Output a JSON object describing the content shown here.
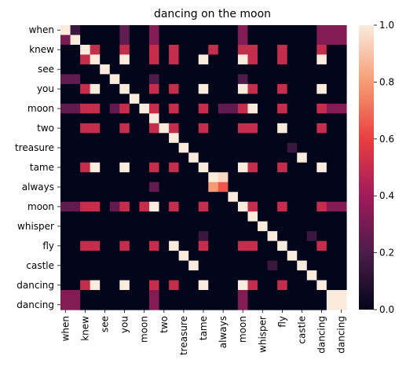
{
  "chart_data": {
    "type": "heatmap",
    "title": "dancing on the moon",
    "tokens": [
      "when",
      "",
      "knew",
      "",
      "see",
      "",
      "you",
      "",
      "moon",
      "",
      "two",
      "",
      "treasure",
      "",
      "tame",
      "",
      "always",
      "",
      "moon",
      "",
      "whisper",
      "",
      "fly",
      "",
      "castle",
      "",
      "dancing",
      "",
      "dancing"
    ],
    "row_labels_shown": [
      "when",
      "knew",
      "see",
      "you",
      "moon",
      "two",
      "treasure",
      "tame",
      "always",
      "moon",
      "whisper",
      "fly",
      "castle",
      "dancing",
      "dancing"
    ],
    "col_labels_shown": [
      "when",
      "knew",
      "see",
      "you",
      "moon",
      "two",
      "treasure",
      "tame",
      "always",
      "moon",
      "whisper",
      "fly",
      "castle",
      "dancing",
      "dancing"
    ],
    "matrix": [
      [
        1,
        0.15,
        0,
        0,
        0,
        0,
        0.25,
        0,
        0,
        0.33,
        0,
        0,
        0,
        0,
        0,
        0,
        0,
        0,
        0.33,
        0,
        0,
        0,
        0,
        0,
        0,
        0,
        0.33,
        0.33,
        0.33
      ],
      [
        0.3,
        1,
        0,
        0,
        0,
        0,
        0.25,
        0,
        0,
        0.33,
        0,
        0,
        0,
        0,
        0,
        0,
        0,
        0,
        0.33,
        0,
        0,
        0,
        0,
        0,
        0,
        0,
        0.33,
        0.33,
        0.33
      ],
      [
        0,
        0,
        1,
        0.5,
        0,
        0,
        0.5,
        0,
        0,
        0.5,
        0,
        0.5,
        0,
        0,
        0,
        0.5,
        0,
        0,
        0.5,
        0.5,
        0,
        0,
        0.5,
        0,
        0,
        0,
        0.5,
        0,
        0
      ],
      [
        0,
        0,
        0.5,
        1,
        0,
        0,
        1,
        0,
        0,
        0.5,
        0,
        0.5,
        0,
        0,
        1,
        0,
        0,
        0,
        1,
        0.5,
        0,
        0,
        0.5,
        0,
        0,
        0,
        1,
        0,
        0
      ],
      [
        0,
        0,
        0,
        0,
        1,
        0,
        0,
        0,
        0,
        0,
        0,
        0,
        0,
        0,
        0,
        0,
        0,
        0,
        0,
        0,
        0,
        0,
        0,
        0,
        0,
        0,
        0,
        0,
        0
      ],
      [
        0.25,
        0.25,
        0,
        0,
        0,
        1,
        0,
        0,
        0,
        0.2,
        0,
        0,
        0,
        0,
        0,
        0,
        0,
        0,
        0.2,
        0,
        0,
        0,
        0,
        0,
        0,
        0,
        0,
        0,
        0
      ],
      [
        0,
        0,
        0.5,
        1,
        0,
        0,
        1,
        0,
        0,
        0.5,
        0,
        0.5,
        0,
        0,
        1,
        0,
        0,
        0,
        1,
        0.5,
        0,
        0,
        0.5,
        0,
        0,
        0,
        1,
        0,
        0
      ],
      [
        0,
        0,
        0,
        0,
        0,
        0,
        0,
        1,
        0,
        0,
        0,
        0,
        0,
        0,
        0,
        0,
        0,
        0,
        0,
        0,
        0,
        0,
        0,
        0,
        0,
        0,
        0,
        0,
        0
      ],
      [
        0.25,
        0.25,
        0.5,
        0.5,
        0,
        0.25,
        0.5,
        0,
        1,
        0.5,
        0,
        0.5,
        0,
        0,
        0.5,
        0,
        0.25,
        0.25,
        0.5,
        1,
        0,
        0,
        0.5,
        0,
        0,
        0,
        0.5,
        0.33,
        0.33
      ],
      [
        0,
        0,
        0,
        0,
        0,
        0,
        0,
        0,
        0,
        1,
        0,
        0,
        0,
        0,
        0,
        0,
        0,
        0,
        0,
        0,
        0,
        0,
        0,
        0,
        0,
        0,
        0,
        0,
        0
      ],
      [
        0,
        0,
        0.5,
        0.5,
        0,
        0,
        0.5,
        0,
        0,
        0.5,
        1,
        0.5,
        0,
        0,
        0.5,
        0,
        0,
        0,
        0.5,
        0.5,
        0,
        0,
        1,
        0,
        0,
        0,
        0.5,
        0,
        0
      ],
      [
        0,
        0,
        0,
        0,
        0,
        0,
        0,
        0,
        0,
        0,
        0,
        1,
        0,
        0,
        0,
        0,
        0,
        0,
        0,
        0,
        0,
        0,
        0,
        0,
        0,
        0,
        0,
        0,
        0
      ],
      [
        0,
        0,
        0,
        0,
        0,
        0,
        0,
        0,
        0,
        0,
        0,
        0,
        1,
        0,
        0,
        0,
        0,
        0,
        0,
        0,
        0,
        0,
        0,
        0.15,
        0,
        0,
        0,
        0,
        0
      ],
      [
        0,
        0,
        0,
        0,
        0,
        0,
        0,
        0,
        0,
        0,
        0,
        0,
        0,
        1,
        0,
        0,
        0,
        0,
        0,
        0,
        0,
        0,
        0,
        0,
        1,
        0,
        0,
        0,
        0
      ],
      [
        0,
        0,
        0.5,
        1,
        0,
        0,
        1,
        0,
        0,
        0.5,
        0,
        0.5,
        0,
        0,
        1,
        0,
        0,
        0,
        1,
        0.5,
        0,
        0,
        0.5,
        0,
        0,
        0,
        1,
        0,
        0
      ],
      [
        0,
        0,
        0,
        0,
        0,
        0,
        0,
        0,
        0,
        0,
        0,
        0,
        0,
        0,
        0,
        1,
        0.95,
        0,
        0,
        0,
        0,
        0,
        0,
        0,
        0,
        0,
        0,
        0,
        0
      ],
      [
        0,
        0,
        0,
        0,
        0,
        0,
        0,
        0,
        0,
        0.25,
        0,
        0,
        0,
        0,
        0,
        0.8,
        0.65,
        0,
        0,
        0,
        0,
        0,
        0,
        0,
        0,
        0,
        0,
        0,
        0
      ],
      [
        0,
        0,
        0,
        0,
        0,
        0,
        0,
        0,
        0,
        0,
        0,
        0,
        0,
        0,
        0,
        0,
        0,
        1,
        0,
        0,
        0,
        0,
        0,
        0,
        0,
        0,
        0,
        0,
        0
      ],
      [
        0.25,
        0.25,
        0.5,
        0.5,
        0,
        0.25,
        0.5,
        0,
        0.5,
        1,
        0,
        0.5,
        0,
        0,
        0.5,
        0,
        0,
        0,
        1,
        0.5,
        0,
        0,
        0.5,
        0,
        0,
        0,
        0.5,
        0.33,
        0.33
      ],
      [
        0,
        0,
        0,
        0,
        0,
        0,
        0,
        0,
        0,
        0,
        0,
        0,
        0,
        0,
        0,
        0,
        0,
        0,
        0,
        1,
        0,
        0,
        0,
        0,
        0,
        0,
        0,
        0,
        0
      ],
      [
        0,
        0,
        0,
        0,
        0,
        0,
        0,
        0,
        0,
        0,
        0,
        0,
        0,
        0,
        0,
        0,
        0,
        0,
        0,
        0,
        1,
        0,
        0,
        0,
        0,
        0,
        0,
        0,
        0
      ],
      [
        0,
        0,
        0,
        0,
        0,
        0,
        0,
        0,
        0,
        0,
        0,
        0,
        0,
        0,
        0.15,
        0,
        0,
        0,
        0,
        0,
        0,
        1,
        0,
        0,
        0,
        0.15,
        0,
        0,
        0
      ],
      [
        0,
        0,
        0.5,
        0.5,
        0,
        0,
        0.5,
        0,
        0,
        0.5,
        0,
        1,
        0,
        0,
        0.5,
        0,
        0,
        0,
        0.5,
        0.5,
        0,
        0,
        1,
        0,
        0,
        0,
        0.5,
        0,
        0
      ],
      [
        0,
        0,
        0,
        0,
        0,
        0,
        0,
        0,
        0,
        0,
        0,
        0,
        1,
        0,
        0,
        0,
        0,
        0,
        0,
        0,
        0,
        0,
        0,
        1,
        0,
        0,
        0,
        0,
        0
      ],
      [
        0,
        0,
        0,
        0,
        0,
        0,
        0,
        0,
        0,
        0,
        0,
        0,
        0,
        1,
        0,
        0,
        0,
        0,
        0,
        0,
        0,
        0.15,
        0,
        0,
        1,
        0,
        0,
        0,
        0
      ],
      [
        0,
        0,
        0,
        0,
        0,
        0,
        0,
        0,
        0,
        0,
        0,
        0,
        0,
        0,
        0,
        0,
        0,
        0,
        0,
        0,
        0,
        0,
        0,
        0,
        0,
        1,
        0,
        0,
        0
      ],
      [
        0,
        0,
        0.5,
        1,
        0,
        0,
        1,
        0,
        0,
        0.5,
        0,
        0.5,
        0,
        0,
        1,
        0,
        0,
        0,
        1,
        0.5,
        0,
        0,
        0.5,
        0,
        0,
        0,
        1,
        0,
        0
      ],
      [
        0.33,
        0.33,
        0,
        0,
        0,
        0,
        0,
        0,
        0,
        0.33,
        0,
        0,
        0,
        0,
        0,
        0,
        0,
        0,
        0.33,
        0,
        0,
        0,
        0,
        0,
        0,
        0,
        0,
        1,
        1
      ],
      [
        0.33,
        0.33,
        0,
        0,
        0,
        0,
        0,
        0,
        0,
        0.33,
        0,
        0,
        0,
        0,
        0,
        0,
        0,
        0,
        0.33,
        0,
        0,
        0,
        0,
        0,
        0,
        0,
        0,
        1,
        1
      ]
    ],
    "colorbar": {
      "min": 0,
      "max": 1,
      "ticks": [
        "0.0",
        "0.2",
        "0.4",
        "0.6",
        "0.8",
        "1.0"
      ],
      "tick_values": [
        0,
        0.2,
        0.4,
        0.6,
        0.8,
        1.0
      ],
      "colormap": [
        "#03051a",
        "#4c1d4b",
        "#a11a5b",
        "#e83f3f",
        "#f69c73",
        "#faebdd"
      ]
    },
    "grid": false
  }
}
